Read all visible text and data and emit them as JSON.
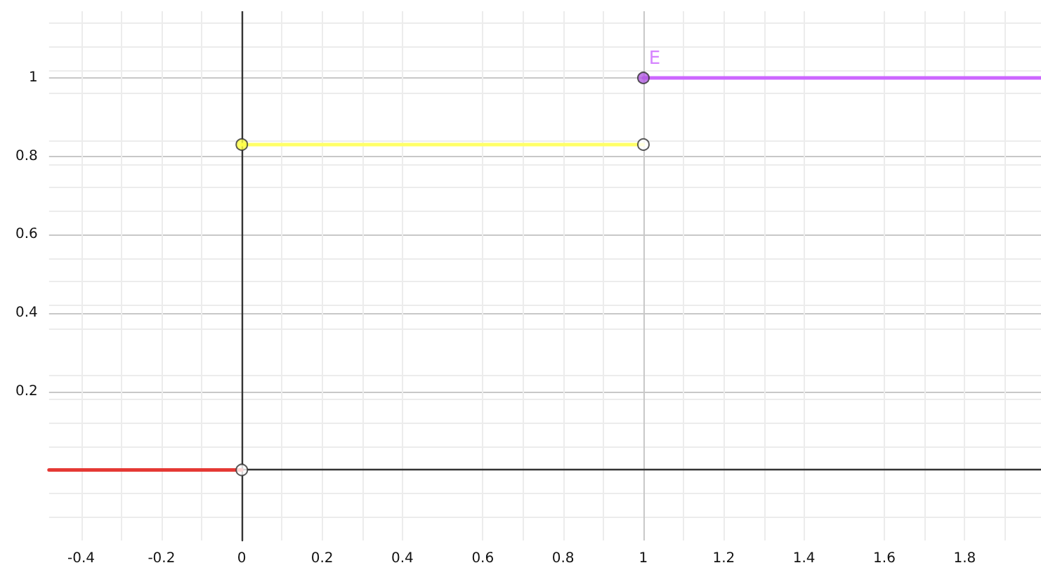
{
  "chart_data": {
    "type": "line",
    "xlim": [
      -0.48,
      1.99
    ],
    "ylim": [
      -0.18,
      1.17
    ],
    "xticks": [
      -0.4,
      -0.2,
      0,
      0.2,
      0.4,
      0.6,
      0.8,
      1,
      1.2,
      1.4,
      1.6,
      1.8
    ],
    "yticks": [
      0.2,
      0.4,
      0.6,
      0.8,
      1
    ],
    "grid": true,
    "annotations": [
      {
        "text": "E",
        "x": 1,
        "y": 1
      }
    ],
    "series": [
      {
        "marker": "none",
        "color": "#e53935",
        "x": [
          -0.48,
          0
        ],
        "values": [
          0,
          0
        ]
      },
      {
        "marker": "none",
        "color": "#ffff66",
        "x": [
          0,
          1
        ],
        "values": [
          0.83,
          0.83
        ]
      },
      {
        "marker": "none",
        "color": "#cc66ff",
        "x": [
          1,
          1.99
        ],
        "values": [
          1,
          1
        ]
      },
      {
        "type": "scatter",
        "marker": "circle",
        "color": "#ffff40",
        "x": [
          0
        ],
        "values": [
          0.83
        ]
      },
      {
        "type": "scatter",
        "marker": "circle",
        "color": "#b05ce0",
        "x": [
          1
        ],
        "values": [
          1
        ]
      },
      {
        "type": "scatter",
        "marker": "circle",
        "color": "#ffffff",
        "x": [
          0,
          1
        ],
        "values": [
          0,
          0.83
        ]
      }
    ]
  }
}
